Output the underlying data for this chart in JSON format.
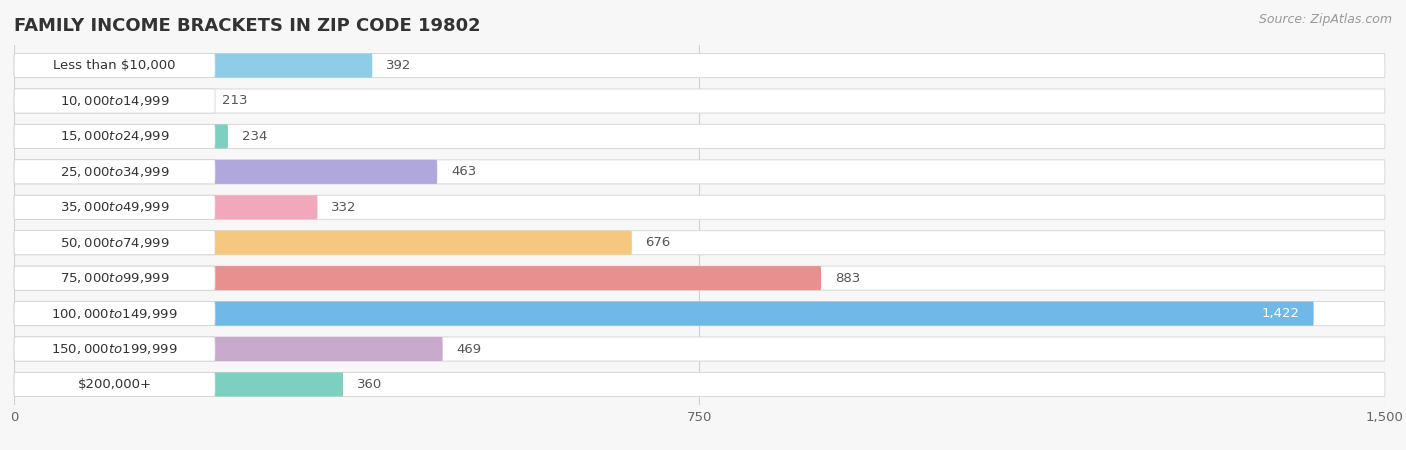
{
  "title": "FAMILY INCOME BRACKETS IN ZIP CODE 19802",
  "source": "Source: ZipAtlas.com",
  "categories": [
    "Less than $10,000",
    "$10,000 to $14,999",
    "$15,000 to $24,999",
    "$25,000 to $34,999",
    "$35,000 to $49,999",
    "$50,000 to $74,999",
    "$75,000 to $99,999",
    "$100,000 to $149,999",
    "$150,000 to $199,999",
    "$200,000+"
  ],
  "values": [
    392,
    213,
    234,
    463,
    332,
    676,
    883,
    1422,
    469,
    360
  ],
  "bar_colors": [
    "#8DCDE8",
    "#D4AACC",
    "#7DCFBF",
    "#B0A8DC",
    "#F2A8BA",
    "#F5C880",
    "#E89090",
    "#70B8E8",
    "#C8AACC",
    "#7DCFBF"
  ],
  "background_color": "#f7f7f7",
  "xlim_max": 1500,
  "xticks": [
    0,
    750,
    1500
  ],
  "title_fontsize": 13,
  "label_fontsize": 9.5,
  "value_fontsize": 9.5,
  "source_fontsize": 9
}
